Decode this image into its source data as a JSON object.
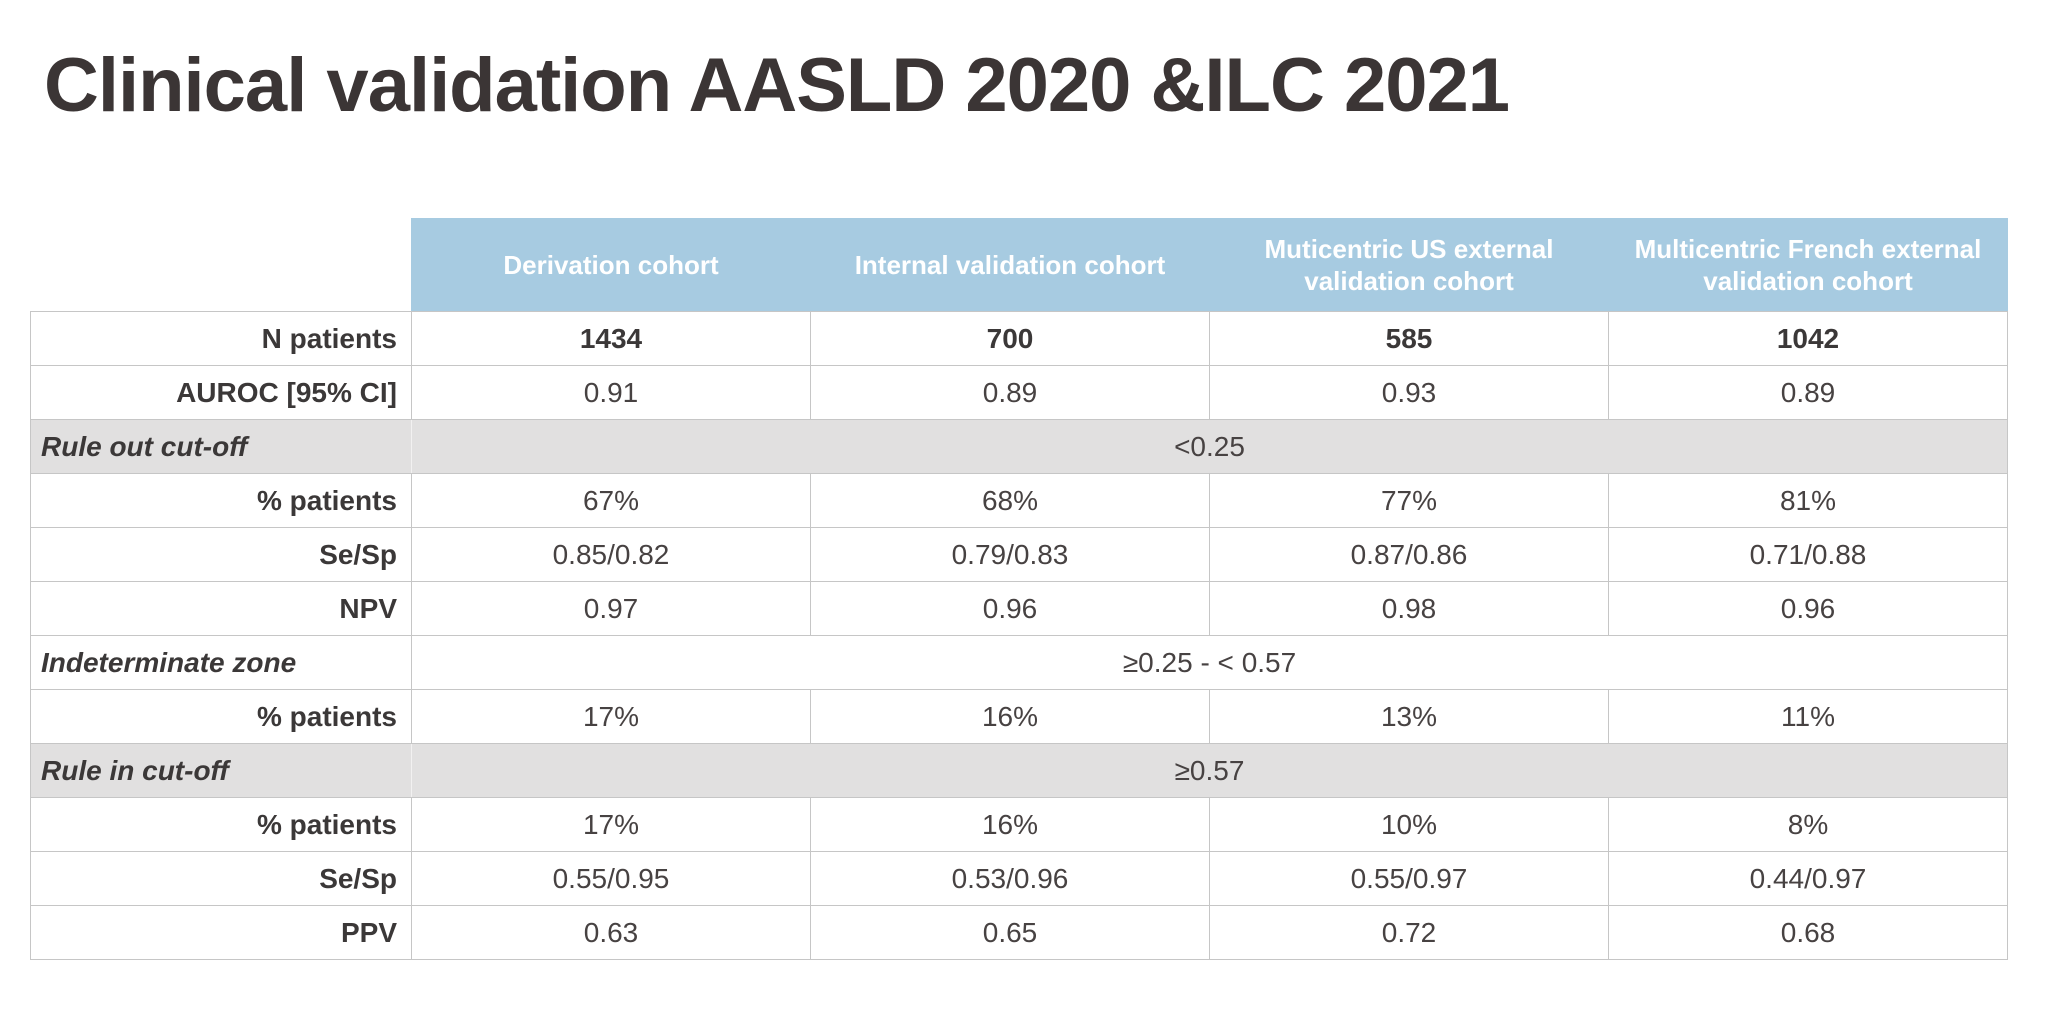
{
  "title": "Clinical validation AASLD 2020 &ILC 2021",
  "colors": {
    "header_bg": "#A7CBE1",
    "header_text": "#FFFFFF",
    "shaded_row_bg": "#E1E0E0",
    "title_text": "#3B3535",
    "body_text": "#3B3838",
    "border": "#C6C6C6"
  },
  "table": {
    "columns": [
      "Derivation cohort",
      "Internal validation cohort",
      "Muticentric US external validation cohort",
      "Multicentric French external validation cohort"
    ],
    "rows": [
      {
        "type": "metric",
        "label": "N patients",
        "values": [
          "1434",
          "700",
          "585",
          "1042"
        ]
      },
      {
        "type": "metric",
        "label": "AUROC [95% CI]",
        "values": [
          "0.91",
          "0.89",
          "0.93",
          "0.89"
        ]
      },
      {
        "type": "section",
        "label": "Rule out cut-off",
        "merged_value": "<0.25",
        "shaded": true
      },
      {
        "type": "metric",
        "label": "% patients",
        "values": [
          "67%",
          "68%",
          "77%",
          "81%"
        ]
      },
      {
        "type": "metric",
        "label": "Se/Sp",
        "values": [
          "0.85/0.82",
          "0.79/0.83",
          "0.87/0.86",
          "0.71/0.88"
        ]
      },
      {
        "type": "metric",
        "label": "NPV",
        "values": [
          "0.97",
          "0.96",
          "0.98",
          "0.96"
        ]
      },
      {
        "type": "section",
        "label": "Indeterminate zone",
        "merged_value": "≥0.25 - < 0.57",
        "shaded": false
      },
      {
        "type": "metric",
        "label": "% patients",
        "values": [
          "17%",
          "16%",
          "13%",
          "11%"
        ]
      },
      {
        "type": "section",
        "label": "Rule in cut-off",
        "merged_value": "≥0.57",
        "shaded": true
      },
      {
        "type": "metric",
        "label": "% patients",
        "values": [
          "17%",
          "16%",
          "10%",
          "8%"
        ]
      },
      {
        "type": "metric",
        "label": "Se/Sp",
        "values": [
          "0.55/0.95",
          "0.53/0.96",
          "0.55/0.97",
          "0.44/0.97"
        ]
      },
      {
        "type": "metric",
        "label": "PPV",
        "values": [
          "0.63",
          "0.65",
          "0.72",
          "0.68"
        ]
      }
    ]
  }
}
